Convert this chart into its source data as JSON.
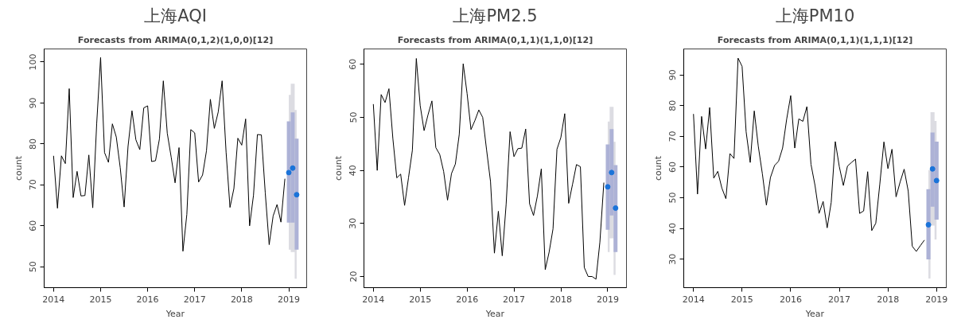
{
  "chart_data": [
    {
      "type": "line",
      "title": "上海AQI",
      "subtitle": "Forecasts from ARIMA(0,1,2)(1,0,0)[12]",
      "xlabel": "Year",
      "ylabel": "count",
      "xlim": [
        2013.8,
        2019.38
      ],
      "ylim": [
        44.9,
        103.2
      ],
      "xticks": [
        2014,
        2015,
        2016,
        2017,
        2018,
        2019
      ],
      "yticks": [
        50,
        60,
        70,
        80,
        90,
        100
      ],
      "series": [
        {
          "color": "#000000",
          "x": [
            2014,
            2014.083,
            2014.167,
            2014.25,
            2014.333,
            2014.417,
            2014.5,
            2014.583,
            2014.667,
            2014.75,
            2014.833,
            2014.917,
            2015,
            2015.083,
            2015.167,
            2015.25,
            2015.333,
            2015.417,
            2015.5,
            2015.583,
            2015.667,
            2015.75,
            2015.833,
            2015.917,
            2016,
            2016.083,
            2016.167,
            2016.25,
            2016.333,
            2016.417,
            2016.5,
            2016.583,
            2016.667,
            2016.75,
            2016.833,
            2016.917,
            2017,
            2017.083,
            2017.167,
            2017.25,
            2017.333,
            2017.417,
            2017.5,
            2017.583,
            2017.667,
            2017.75,
            2017.833,
            2017.917,
            2018,
            2018.083,
            2018.167,
            2018.25,
            2018.333,
            2018.417,
            2018.5,
            2018.583,
            2018.667,
            2018.75,
            2018.833,
            2018.917
          ],
          "values": [
            77.1,
            64.3,
            77.1,
            75.2,
            93.5,
            66.9,
            73.3,
            67.3,
            67.4,
            77.3,
            64.4,
            85,
            101.1,
            77.9,
            75.5,
            84.9,
            81.7,
            74.2,
            64.6,
            79.4,
            88.1,
            81,
            78.6,
            88.8,
            89.3,
            75.7,
            75.9,
            81.2,
            95.4,
            82.6,
            76.8,
            70.5,
            79.1,
            53.8,
            62.8,
            83.5,
            82.7,
            70.7,
            72.4,
            78.3,
            90.9,
            83.8,
            87.8,
            95.4,
            78,
            64.5,
            69.1,
            81.4,
            79.7,
            86.1,
            60,
            67.5,
            82.3,
            82.2,
            68,
            55.4,
            62.4,
            65.2,
            60.9,
            71.5
          ]
        },
        {
          "type": "scatter",
          "marker": "circle",
          "color": "#1a73d9",
          "x": [
            2019,
            2019.083,
            2019.167
          ],
          "values": [
            73.0,
            74.1,
            67.6
          ],
          "errors": [
            [
              60.8,
              85.5
            ],
            [
              60.8,
              87.7
            ],
            [
              54.2,
              81.3
            ]
          ],
          "lower": [
            54.2,
            53.6,
            47.1
          ],
          "upper": [
            92,
            94.7,
            88.3
          ]
        }
      ]
    },
    {
      "type": "line",
      "title": "上海PM2.5",
      "subtitle": "Forecasts from ARIMA(0,1,1)(1,1,0)[12]",
      "xlabel": "Year",
      "ylabel": "count",
      "xlim": [
        2013.8,
        2019.4
      ],
      "ylim": [
        17.9,
        62.9
      ],
      "xticks": [
        2014,
        2015,
        2016,
        2017,
        2018,
        2019
      ],
      "yticks": [
        20,
        30,
        40,
        50,
        60
      ],
      "series": [
        {
          "color": "#000000",
          "x": [
            2014,
            2014.083,
            2014.167,
            2014.25,
            2014.333,
            2014.417,
            2014.5,
            2014.583,
            2014.667,
            2014.75,
            2014.833,
            2014.917,
            2015,
            2015.083,
            2015.167,
            2015.25,
            2015.333,
            2015.417,
            2015.5,
            2015.583,
            2015.667,
            2015.75,
            2015.833,
            2015.917,
            2016,
            2016.083,
            2016.167,
            2016.25,
            2016.333,
            2016.417,
            2016.5,
            2016.583,
            2016.667,
            2016.75,
            2016.833,
            2016.917,
            2017,
            2017.083,
            2017.167,
            2017.25,
            2017.333,
            2017.417,
            2017.5,
            2017.583,
            2017.667,
            2017.75,
            2017.833,
            2017.917,
            2018,
            2018.083,
            2018.167,
            2018.25,
            2018.333,
            2018.417,
            2018.5,
            2018.583,
            2018.667,
            2018.75,
            2018.833,
            2018.917
          ],
          "values": [
            52.5,
            40,
            54.3,
            52.8,
            55.4,
            46,
            38.6,
            39.3,
            33.4,
            38.6,
            43.8,
            61.1,
            52.2,
            47.5,
            50.5,
            53.1,
            44.3,
            43,
            39.8,
            34.4,
            39.4,
            41.2,
            46.8,
            60.1,
            54.5,
            47.7,
            49.4,
            51.4,
            50,
            43.8,
            37.9,
            24.4,
            32.3,
            23.9,
            33.6,
            47.3,
            42.6,
            44.1,
            44.2,
            47.8,
            33.7,
            31.5,
            35.2,
            40.3,
            21.3,
            24.6,
            29,
            44,
            46.2,
            50.7,
            33.8,
            37.4,
            41.1,
            40.7,
            21.7,
            20,
            20,
            19.5,
            26.5,
            37.7
          ]
        },
        {
          "type": "scatter",
          "marker": "circle",
          "color": "#1a73d9",
          "x": [
            2019,
            2019.083,
            2019.167
          ],
          "values": [
            36.9,
            39.6,
            32.9
          ],
          "errors": [
            [
              28.8,
              44.9
            ],
            [
              31.5,
              47.8
            ],
            [
              24.6,
              41
            ]
          ],
          "lower": [
            24.6,
            27.2,
            20.3
          ],
          "upper": [
            49.2,
            52,
            45.4
          ]
        }
      ]
    },
    {
      "type": "line",
      "title": "上海PM10",
      "subtitle": "Forecasts from ARIMA(0,1,1)(1,1,1)[12]",
      "xlabel": "Year",
      "ylabel": "count",
      "xlim": [
        2013.8,
        2019.2
      ],
      "ylim": [
        20.7,
        98.5
      ],
      "xticks": [
        2014,
        2015,
        2016,
        2017,
        2018,
        2019
      ],
      "yticks": [
        30,
        40,
        50,
        60,
        70,
        80,
        90
      ],
      "series": [
        {
          "color": "#000000",
          "x": [
            2014,
            2014.083,
            2014.167,
            2014.25,
            2014.333,
            2014.417,
            2014.5,
            2014.583,
            2014.667,
            2014.75,
            2014.833,
            2014.917,
            2015,
            2015.083,
            2015.167,
            2015.25,
            2015.333,
            2015.417,
            2015.5,
            2015.583,
            2015.667,
            2015.75,
            2015.833,
            2015.917,
            2016,
            2016.083,
            2016.167,
            2016.25,
            2016.333,
            2016.417,
            2016.5,
            2016.583,
            2016.667,
            2016.75,
            2016.833,
            2016.917,
            2017,
            2017.083,
            2017.167,
            2017.25,
            2017.333,
            2017.417,
            2017.5,
            2017.583,
            2017.667,
            2017.75,
            2017.833,
            2017.917,
            2018,
            2018.083,
            2018.167,
            2018.25,
            2018.333,
            2018.417,
            2018.5,
            2018.583,
            2018.667,
            2018.75
          ],
          "values": [
            77.3,
            51.2,
            76.5,
            65.9,
            79.4,
            56.4,
            58.6,
            53.2,
            49.7,
            64.4,
            62.8,
            95.5,
            92.8,
            71.5,
            61.5,
            78.3,
            66.8,
            57.8,
            47.6,
            56.6,
            60.5,
            61.9,
            66.2,
            75.6,
            83.3,
            66.2,
            75.7,
            74.9,
            79.7,
            60.9,
            54,
            44.9,
            48.8,
            40.2,
            48.5,
            68.3,
            60.1,
            54,
            60.3,
            61.5,
            62.6,
            44.9,
            45.7,
            58.5,
            39.3,
            41.7,
            54.5,
            68.2,
            59.5,
            65.8,
            50.3,
            55.1,
            59.3,
            52.2,
            34.2,
            32.5,
            34.4,
            36.2
          ]
        },
        {
          "type": "scatter",
          "marker": "circle",
          "color": "#1a73d9",
          "x": [
            2018.833,
            2018.917,
            2019
          ],
          "values": [
            41.2,
            59.4,
            55.6
          ],
          "errors": [
            [
              29.9,
              52.8
            ],
            [
              47.1,
              71.3
            ],
            [
              42.9,
              68.3
            ]
          ],
          "lower": [
            23.7,
            40.9,
            36.4
          ],
          "upper": [
            59,
            77.9,
            75
          ]
        }
      ]
    }
  ]
}
